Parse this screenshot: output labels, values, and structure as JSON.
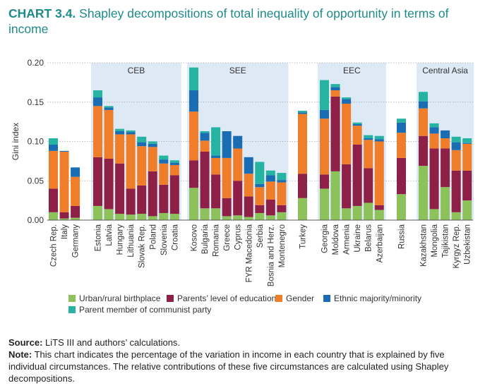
{
  "title": {
    "label": "CHART 3.4.",
    "text": "Shapley decompositions of total inequality of opportunity in terms of income"
  },
  "source": {
    "label": "Source:",
    "text": "LiTS III and authors’ calculations."
  },
  "note": {
    "label": "Note:",
    "text": "This chart indicates the percentage of the variation in income in each country that is explained by five individual circumstances. The relative contributions of these five circumstances are calculated using Shapley decompositions."
  },
  "chart_data": {
    "type": "bar",
    "stacked": true,
    "ylabel": "Gini index",
    "ylim": [
      0,
      0.2
    ],
    "yticks": [
      "0.00",
      "0.05",
      "0.10",
      "0.15",
      "0.20"
    ],
    "grid": true,
    "legend_position": "bottom",
    "categories": [
      "Czech Rep.",
      "Italy",
      "Germany",
      "Estonia",
      "Latvia",
      "Hungary",
      "Lithuania",
      "Slovak Rep.",
      "Poland",
      "Slovenia",
      "Croatia",
      "Kosovo",
      "Bulgaria",
      "Romania",
      "Greece",
      "Cyprus",
      "FYR Macedonia",
      "Serbia",
      "Bosnia and Herz.",
      "Montenegro",
      "Turkey",
      "Georgia",
      "Moldova",
      "Armenia",
      "Ukraine",
      "Belarus",
      "Azerbaijan",
      "Russia",
      "Kazakhstan",
      "Mongolia",
      "Tajikistan",
      "Kyrgyz Rep.",
      "Uzbekistan"
    ],
    "regions": [
      {
        "name": "CEB",
        "start": 3,
        "end": 10
      },
      {
        "name": "SEE",
        "start": 11,
        "end": 19
      },
      {
        "name": "EEC",
        "start": 21,
        "end": 26
      },
      {
        "name": "Central Asia",
        "start": 28,
        "end": 32
      }
    ],
    "groups": [
      [
        0,
        2
      ],
      [
        3,
        10
      ],
      [
        11,
        19
      ],
      [
        20,
        20
      ],
      [
        21,
        26
      ],
      [
        27,
        27
      ],
      [
        28,
        32
      ]
    ],
    "series": [
      {
        "name": "Urban/rural birthplace",
        "color": "#8dc15a",
        "values": [
          0.01,
          0.002,
          0.003,
          0.018,
          0.014,
          0.008,
          0.007,
          0.008,
          0.005,
          0.009,
          0.008,
          0.041,
          0.015,
          0.015,
          0.005,
          0.006,
          0.004,
          0.009,
          0.006,
          0.01,
          0.028,
          0.04,
          0.062,
          0.015,
          0.018,
          0.022,
          0.013,
          0.033,
          0.069,
          0.014,
          0.042,
          0.01,
          0.025
        ]
      },
      {
        "name": "Parents’ level of education",
        "color": "#8e1f46",
        "values": [
          0.03,
          0.008,
          0.015,
          0.062,
          0.064,
          0.064,
          0.033,
          0.036,
          0.057,
          0.036,
          0.049,
          0.035,
          0.072,
          0.043,
          0.023,
          0.044,
          0.026,
          0.01,
          0.02,
          0.009,
          0.031,
          0.018,
          0.095,
          0.056,
          0.078,
          0.044,
          0.006,
          0.046,
          0.038,
          0.077,
          0.049,
          0.053,
          0.038
        ]
      },
      {
        "name": "Gender",
        "color": "#f07d2a",
        "values": [
          0.048,
          0.077,
          0.037,
          0.065,
          0.062,
          0.037,
          0.069,
          0.05,
          0.031,
          0.027,
          0.013,
          0.062,
          0.014,
          0.021,
          0.051,
          0.041,
          0.029,
          0.023,
          0.023,
          0.029,
          0.076,
          0.071,
          0.008,
          0.077,
          0.024,
          0.036,
          0.081,
          0.032,
          0.035,
          0.019,
          0.013,
          0.026,
          0.034
        ]
      },
      {
        "name": "Ethnic majority/minority",
        "color": "#1a6db3",
        "values": [
          0.008,
          0.001,
          0.012,
          0.011,
          0.003,
          0.004,
          0.003,
          0.005,
          0.004,
          0.005,
          0.003,
          0.027,
          0.01,
          0.003,
          0.034,
          0.016,
          0.021,
          0.004,
          0.008,
          0.003,
          0.002,
          0.011,
          0.004,
          0.006,
          0.002,
          0.002,
          0.003,
          0.013,
          0.009,
          0.008,
          0.01,
          0.01,
          0.001
        ]
      },
      {
        "name": "Parent member of communist party",
        "color": "#26b3a2",
        "values": [
          0.008,
          0.0,
          0.0,
          0.009,
          0.002,
          0.003,
          0.002,
          0.007,
          0.003,
          0.005,
          0.003,
          0.029,
          0.002,
          0.036,
          0.0,
          0.0,
          0.0,
          0.028,
          0.006,
          0.009,
          0.002,
          0.038,
          0.004,
          0.002,
          0.002,
          0.004,
          0.004,
          0.005,
          0.012,
          0.005,
          0.0,
          0.007,
          0.006
        ]
      }
    ]
  }
}
